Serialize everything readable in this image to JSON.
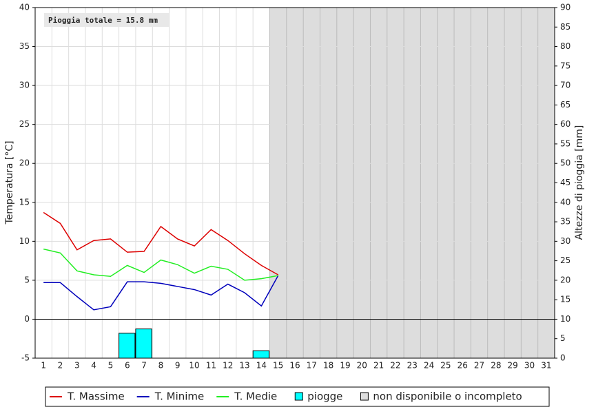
{
  "chart_data": {
    "type": "line",
    "annotation": "Pioggia totale = 15.8 mm",
    "categories": [
      "1",
      "2",
      "3",
      "4",
      "5",
      "6",
      "7",
      "8",
      "9",
      "10",
      "11",
      "12",
      "13",
      "14",
      "15",
      "16",
      "17",
      "18",
      "19",
      "20",
      "21",
      "22",
      "23",
      "24",
      "25",
      "26",
      "27",
      "28",
      "29",
      "30",
      "31"
    ],
    "ylabel": "Temperatura [°C]",
    "y2label": "Altezze di pioggia [mm]",
    "ylim": [
      -5,
      40
    ],
    "yticks": [
      -5,
      0,
      5,
      10,
      15,
      20,
      25,
      30,
      35,
      40
    ],
    "y2lim": [
      0,
      90
    ],
    "y2ticks": [
      0,
      5,
      10,
      15,
      20,
      25,
      30,
      35,
      40,
      45,
      50,
      55,
      60,
      65,
      70,
      75,
      80,
      85,
      90
    ],
    "grid": true,
    "series": [
      {
        "name": "T. Massime",
        "color": "#dd0000",
        "values": [
          13.7,
          12.3,
          8.9,
          10.1,
          10.3,
          8.6,
          8.7,
          11.9,
          10.3,
          9.4,
          11.5,
          10.1,
          8.4,
          6.9,
          5.7,
          null,
          null,
          null,
          null,
          null,
          null,
          null,
          null,
          null,
          null,
          null,
          null,
          null,
          null,
          null,
          null
        ]
      },
      {
        "name": "T. Minime",
        "color": "#0000bb",
        "values": [
          4.7,
          4.7,
          2.9,
          1.2,
          1.6,
          4.8,
          4.8,
          4.6,
          4.2,
          3.8,
          3.1,
          4.5,
          3.4,
          1.7,
          5.6,
          null,
          null,
          null,
          null,
          null,
          null,
          null,
          null,
          null,
          null,
          null,
          null,
          null,
          null,
          null,
          null
        ]
      },
      {
        "name": "T. Medie",
        "color": "#22ee22",
        "values": [
          9.0,
          8.5,
          6.2,
          5.7,
          5.5,
          6.9,
          6.0,
          7.6,
          7.0,
          5.9,
          6.8,
          6.4,
          5.0,
          5.2,
          5.6,
          null,
          null,
          null,
          null,
          null,
          null,
          null,
          null,
          null,
          null,
          null,
          null,
          null,
          null,
          null,
          null
        ]
      },
      {
        "name": "piogge",
        "color": "#00ffff",
        "type": "bar",
        "axis": "y2",
        "values": [
          0,
          0,
          0,
          0,
          0,
          6.4,
          7.5,
          0,
          0,
          0,
          0,
          0,
          0,
          1.9,
          0,
          null,
          null,
          null,
          null,
          null,
          null,
          null,
          null,
          null,
          null,
          null,
          null,
          null,
          null,
          null,
          null
        ]
      }
    ],
    "unavailable": {
      "name": "non disponibile o incompleto",
      "color": "#dddddd",
      "from": 15
    }
  }
}
